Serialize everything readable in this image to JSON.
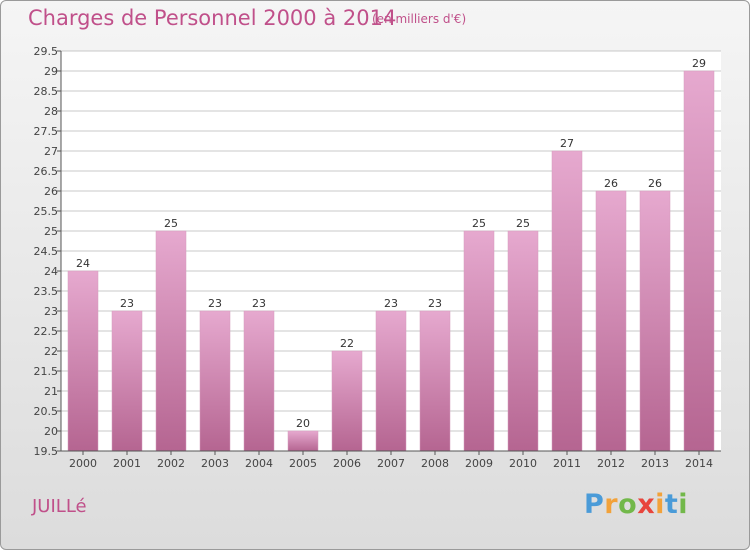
{
  "title": "Charges de Personnel 2000 à 2014",
  "subtitle": "(en milliers d'€)",
  "town": "JUILLé",
  "logo": {
    "text": "Proxiti",
    "letters": [
      "P",
      "r",
      "o",
      "x",
      "i",
      "t",
      "i"
    ],
    "colors": [
      "#4a9bd8",
      "#f2a23a",
      "#72b84a",
      "#e8453c",
      "#f2a23a",
      "#4a9bd8",
      "#72b84a"
    ]
  },
  "colors": {
    "title": "#c0508a",
    "bar_top": "#e6a9cf",
    "bar_bottom": "#b56591",
    "grid": "#c8c8c8",
    "axis": "#555555"
  },
  "chart_data": {
    "type": "bar",
    "categories": [
      "2000",
      "2001",
      "2002",
      "2003",
      "2004",
      "2005",
      "2006",
      "2007",
      "2008",
      "2009",
      "2010",
      "2011",
      "2012",
      "2013",
      "2014"
    ],
    "values": [
      24,
      23,
      25,
      23,
      23,
      20,
      22,
      23,
      23,
      25,
      25,
      27,
      26,
      26,
      29
    ],
    "data_labels": [
      "24",
      "23",
      "25",
      "23",
      "23",
      "20",
      "22",
      "23",
      "23",
      "25",
      "25",
      "27",
      "26",
      "26",
      "29"
    ],
    "ylim": [
      19.5,
      29.5
    ],
    "y_ticks": [
      "19.5",
      "20",
      "20.5",
      "21",
      "21.5",
      "22",
      "22.5",
      "23",
      "23.5",
      "24",
      "24.5",
      "25",
      "25.5",
      "26",
      "26.5",
      "27",
      "27.5",
      "28",
      "28.5",
      "29",
      "29.5"
    ],
    "grid": true,
    "xlabel": "",
    "ylabel": ""
  }
}
